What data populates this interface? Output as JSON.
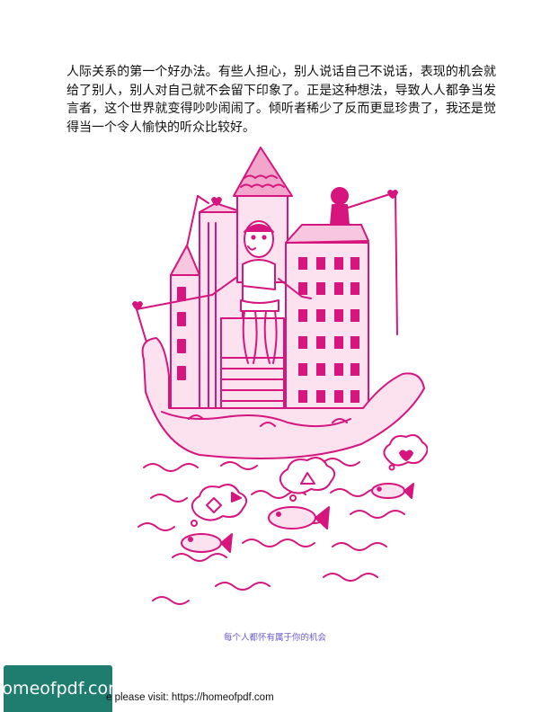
{
  "body_text": "人际关系的第一个好办法。有些人担心，别人说话自己不说话，表现的机会就给了别人，别人对自己就不会留下印象了。正是这种想法，导致人人都争当发言者，这个世界就变得吵吵闹闹了。倾听者稀少了反而更显珍贵了，我还是觉得当一个令人愉快的听众比较好。",
  "illustration": {
    "accent_color": "#d6157e",
    "bubble_symbols": [
      "△",
      "◇",
      "♡"
    ]
  },
  "caption": "每个人都怀有属于你的机会",
  "footer": {
    "logo_text": "homeofpdf.com",
    "visit_text": "e please visit: https://homeofpdf.com"
  }
}
